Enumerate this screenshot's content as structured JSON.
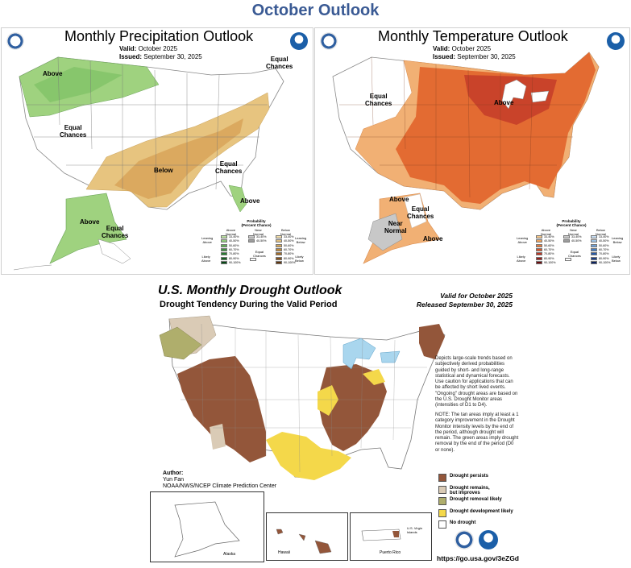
{
  "page_title": "October Outlook",
  "precip": {
    "title": "Monthly Precipitation Outlook",
    "valid_label": "Valid:",
    "valid_value": "October 2025",
    "issued_label": "Issued:",
    "issued_value": "September 30, 2025",
    "labels": {
      "above_nw": "Above",
      "equal_ne": "Equal\nChances",
      "equal_center": "Equal\nChances",
      "below": "Below",
      "equal_se": "Equal\nChances",
      "above_fl": "Above",
      "above_ak": "Above",
      "equal_ak": "Equal\nChances"
    },
    "legend": {
      "heading": "Probability\n(Percent Chance)",
      "col_above": "Above\nNormal",
      "col_near": "Near\nNormal",
      "col_below": "Below\nNormal",
      "side_left_top": "Leaning\nAbove",
      "side_left_bottom": "Likely\nAbove",
      "side_right_top": "Leaning\nBelow",
      "side_right_bottom": "Likely\nBelow",
      "ranges": [
        "33-40%",
        "40-50%",
        "50-60%",
        "60-70%",
        "70-80%",
        "80-90%",
        "90-100%"
      ],
      "near_ranges": [
        "33-40%",
        "40-50%"
      ],
      "ec_label": "Equal\nChances",
      "above_colors": [
        "#b9dea0",
        "#8fcb7a",
        "#5fae54",
        "#3d9140",
        "#267a2f",
        "#135f20",
        "#044814"
      ],
      "below_colors": [
        "#f3dfaa",
        "#e2c07f",
        "#d3a557",
        "#c08a3b",
        "#a46c27",
        "#84501a",
        "#613610"
      ],
      "near_colors": [
        "#c8c8c8",
        "#9d9d9d"
      ]
    }
  },
  "temp": {
    "title": "Monthly Temperature Outlook",
    "valid_label": "Valid:",
    "valid_value": "October 2025",
    "issued_label": "Issued:",
    "issued_value": "September 30, 2025",
    "labels": {
      "equal_w": "Equal\nChances",
      "above": "Above",
      "above_ak": "Above",
      "near_ak": "Near\nNormal",
      "equal_ak": "Equal\nChances",
      "above_ak2": "Above"
    },
    "legend": {
      "heading": "Probability\n(Percent Chance)",
      "col_above": "Above\nNormal",
      "col_near": "Near\nNormal",
      "col_below": "Below\nNormal",
      "side_left_top": "Leaning\nAbove",
      "side_left_bottom": "Likely\nAbove",
      "side_right_top": "Leaning\nBelow",
      "side_right_bottom": "Likely\nBelow",
      "ranges": [
        "33-40%",
        "40-50%",
        "50-60%",
        "60-70%",
        "70-80%",
        "80-90%",
        "90-100%"
      ],
      "near_ranges": [
        "33-40%",
        "40-50%"
      ],
      "ec_label": "Equal\nChances",
      "above_colors": [
        "#f5c78a",
        "#eea25d",
        "#e4793a",
        "#d8562b",
        "#bd3523",
        "#951d18",
        "#6b0d0f"
      ],
      "below_colors": [
        "#c7ddf2",
        "#9cc2e6",
        "#6d9fd6",
        "#437dc3",
        "#2659a8",
        "#173c85",
        "#0b2260"
      ],
      "near_colors": [
        "#c8c8c8",
        "#9d9d9d"
      ]
    }
  },
  "drought": {
    "title": "U.S. Monthly Drought Outlook",
    "subtitle": "Drought Tendency During the Valid Period",
    "valid_line": "Valid for October 2025",
    "released_line": "Released September 30, 2025",
    "notes_1": "Depicts large-scale trends based on subjectively derived probabilities guided by short- and long-range statistical and dynamical forecasts. Use caution for applications that can be affected by short lived events. \"Ongoing\" drought areas are based on the U.S. Drought Monitor areas (intensities of D1 to D4).",
    "notes_2": "NOTE: The tan areas imply at least a 1 category improvement in the Drought Monitor intensity levels by the end of the period, although drought will remain. The green areas imply drought removal by the end of the period (D0 or none).",
    "legend": [
      {
        "label": "Drought persists",
        "color": "#93563a"
      },
      {
        "label": "Drought remains,\nbut improves",
        "color": "#dacbb6"
      },
      {
        "label": "Drought removal likely",
        "color": "#afae6c"
      },
      {
        "label": "Drought development likely",
        "color": "#f4d84a"
      },
      {
        "label": "No drought",
        "color": "#ffffff"
      }
    ],
    "author_label": "Author:",
    "author_name": "Yun Fan",
    "author_org": "NOAA/NWS/NCEP Climate Prediction Center",
    "inset_labels": {
      "alaska": "Alaska",
      "hawaii": "Hawaii",
      "puerto_rico": "Puerto Rico",
      "virgin_islands": "U.S. Virgin\nIslands"
    },
    "url": "https://go.usa.gov/3eZGd"
  },
  "colors": {
    "title_blue": "#3a5a94",
    "noaa_blue": "#1b5fa8",
    "lake_blue": "#a9d6ee",
    "precip_green": "#9fd27f",
    "precip_tan": "#e7c47f",
    "temp_orange": "#e36b32",
    "drought_brown": "#93563a"
  }
}
